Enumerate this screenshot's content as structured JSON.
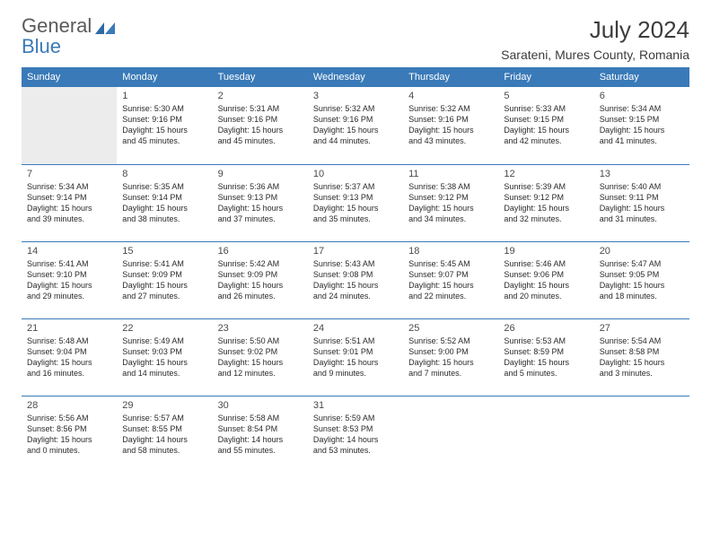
{
  "brand": {
    "word1": "General",
    "word2": "Blue"
  },
  "title": "July 2024",
  "location": "Sarateni, Mures County, Romania",
  "colors": {
    "header_bg": "#3a7ab8",
    "header_text": "#ffffff",
    "border": "#3a7ab8",
    "text": "#2a2a2a",
    "daynum": "#4a4a4a",
    "location_text": "#3c3c3c",
    "logo_gray": "#5a5a5a",
    "logo_blue": "#3a7ab8",
    "empty_bg": "#ececec"
  },
  "typography": {
    "title_fontsize": 26,
    "location_fontsize": 14,
    "dayhead_fontsize": 11,
    "daynum_fontsize": 11,
    "info_fontsize": 9,
    "font_family": "Arial"
  },
  "dayheads": [
    "Sunday",
    "Monday",
    "Tuesday",
    "Wednesday",
    "Thursday",
    "Friday",
    "Saturday"
  ],
  "weeks": [
    [
      {
        "day": "",
        "sunrise": "",
        "sunset": "",
        "daylight1": "",
        "daylight2": ""
      },
      {
        "day": "1",
        "sunrise": "Sunrise: 5:30 AM",
        "sunset": "Sunset: 9:16 PM",
        "daylight1": "Daylight: 15 hours",
        "daylight2": "and 45 minutes."
      },
      {
        "day": "2",
        "sunrise": "Sunrise: 5:31 AM",
        "sunset": "Sunset: 9:16 PM",
        "daylight1": "Daylight: 15 hours",
        "daylight2": "and 45 minutes."
      },
      {
        "day": "3",
        "sunrise": "Sunrise: 5:32 AM",
        "sunset": "Sunset: 9:16 PM",
        "daylight1": "Daylight: 15 hours",
        "daylight2": "and 44 minutes."
      },
      {
        "day": "4",
        "sunrise": "Sunrise: 5:32 AM",
        "sunset": "Sunset: 9:16 PM",
        "daylight1": "Daylight: 15 hours",
        "daylight2": "and 43 minutes."
      },
      {
        "day": "5",
        "sunrise": "Sunrise: 5:33 AM",
        "sunset": "Sunset: 9:15 PM",
        "daylight1": "Daylight: 15 hours",
        "daylight2": "and 42 minutes."
      },
      {
        "day": "6",
        "sunrise": "Sunrise: 5:34 AM",
        "sunset": "Sunset: 9:15 PM",
        "daylight1": "Daylight: 15 hours",
        "daylight2": "and 41 minutes."
      }
    ],
    [
      {
        "day": "7",
        "sunrise": "Sunrise: 5:34 AM",
        "sunset": "Sunset: 9:14 PM",
        "daylight1": "Daylight: 15 hours",
        "daylight2": "and 39 minutes."
      },
      {
        "day": "8",
        "sunrise": "Sunrise: 5:35 AM",
        "sunset": "Sunset: 9:14 PM",
        "daylight1": "Daylight: 15 hours",
        "daylight2": "and 38 minutes."
      },
      {
        "day": "9",
        "sunrise": "Sunrise: 5:36 AM",
        "sunset": "Sunset: 9:13 PM",
        "daylight1": "Daylight: 15 hours",
        "daylight2": "and 37 minutes."
      },
      {
        "day": "10",
        "sunrise": "Sunrise: 5:37 AM",
        "sunset": "Sunset: 9:13 PM",
        "daylight1": "Daylight: 15 hours",
        "daylight2": "and 35 minutes."
      },
      {
        "day": "11",
        "sunrise": "Sunrise: 5:38 AM",
        "sunset": "Sunset: 9:12 PM",
        "daylight1": "Daylight: 15 hours",
        "daylight2": "and 34 minutes."
      },
      {
        "day": "12",
        "sunrise": "Sunrise: 5:39 AM",
        "sunset": "Sunset: 9:12 PM",
        "daylight1": "Daylight: 15 hours",
        "daylight2": "and 32 minutes."
      },
      {
        "day": "13",
        "sunrise": "Sunrise: 5:40 AM",
        "sunset": "Sunset: 9:11 PM",
        "daylight1": "Daylight: 15 hours",
        "daylight2": "and 31 minutes."
      }
    ],
    [
      {
        "day": "14",
        "sunrise": "Sunrise: 5:41 AM",
        "sunset": "Sunset: 9:10 PM",
        "daylight1": "Daylight: 15 hours",
        "daylight2": "and 29 minutes."
      },
      {
        "day": "15",
        "sunrise": "Sunrise: 5:41 AM",
        "sunset": "Sunset: 9:09 PM",
        "daylight1": "Daylight: 15 hours",
        "daylight2": "and 27 minutes."
      },
      {
        "day": "16",
        "sunrise": "Sunrise: 5:42 AM",
        "sunset": "Sunset: 9:09 PM",
        "daylight1": "Daylight: 15 hours",
        "daylight2": "and 26 minutes."
      },
      {
        "day": "17",
        "sunrise": "Sunrise: 5:43 AM",
        "sunset": "Sunset: 9:08 PM",
        "daylight1": "Daylight: 15 hours",
        "daylight2": "and 24 minutes."
      },
      {
        "day": "18",
        "sunrise": "Sunrise: 5:45 AM",
        "sunset": "Sunset: 9:07 PM",
        "daylight1": "Daylight: 15 hours",
        "daylight2": "and 22 minutes."
      },
      {
        "day": "19",
        "sunrise": "Sunrise: 5:46 AM",
        "sunset": "Sunset: 9:06 PM",
        "daylight1": "Daylight: 15 hours",
        "daylight2": "and 20 minutes."
      },
      {
        "day": "20",
        "sunrise": "Sunrise: 5:47 AM",
        "sunset": "Sunset: 9:05 PM",
        "daylight1": "Daylight: 15 hours",
        "daylight2": "and 18 minutes."
      }
    ],
    [
      {
        "day": "21",
        "sunrise": "Sunrise: 5:48 AM",
        "sunset": "Sunset: 9:04 PM",
        "daylight1": "Daylight: 15 hours",
        "daylight2": "and 16 minutes."
      },
      {
        "day": "22",
        "sunrise": "Sunrise: 5:49 AM",
        "sunset": "Sunset: 9:03 PM",
        "daylight1": "Daylight: 15 hours",
        "daylight2": "and 14 minutes."
      },
      {
        "day": "23",
        "sunrise": "Sunrise: 5:50 AM",
        "sunset": "Sunset: 9:02 PM",
        "daylight1": "Daylight: 15 hours",
        "daylight2": "and 12 minutes."
      },
      {
        "day": "24",
        "sunrise": "Sunrise: 5:51 AM",
        "sunset": "Sunset: 9:01 PM",
        "daylight1": "Daylight: 15 hours",
        "daylight2": "and 9 minutes."
      },
      {
        "day": "25",
        "sunrise": "Sunrise: 5:52 AM",
        "sunset": "Sunset: 9:00 PM",
        "daylight1": "Daylight: 15 hours",
        "daylight2": "and 7 minutes."
      },
      {
        "day": "26",
        "sunrise": "Sunrise: 5:53 AM",
        "sunset": "Sunset: 8:59 PM",
        "daylight1": "Daylight: 15 hours",
        "daylight2": "and 5 minutes."
      },
      {
        "day": "27",
        "sunrise": "Sunrise: 5:54 AM",
        "sunset": "Sunset: 8:58 PM",
        "daylight1": "Daylight: 15 hours",
        "daylight2": "and 3 minutes."
      }
    ],
    [
      {
        "day": "28",
        "sunrise": "Sunrise: 5:56 AM",
        "sunset": "Sunset: 8:56 PM",
        "daylight1": "Daylight: 15 hours",
        "daylight2": "and 0 minutes."
      },
      {
        "day": "29",
        "sunrise": "Sunrise: 5:57 AM",
        "sunset": "Sunset: 8:55 PM",
        "daylight1": "Daylight: 14 hours",
        "daylight2": "and 58 minutes."
      },
      {
        "day": "30",
        "sunrise": "Sunrise: 5:58 AM",
        "sunset": "Sunset: 8:54 PM",
        "daylight1": "Daylight: 14 hours",
        "daylight2": "and 55 minutes."
      },
      {
        "day": "31",
        "sunrise": "Sunrise: 5:59 AM",
        "sunset": "Sunset: 8:53 PM",
        "daylight1": "Daylight: 14 hours",
        "daylight2": "and 53 minutes."
      },
      {
        "day": "",
        "sunrise": "",
        "sunset": "",
        "daylight1": "",
        "daylight2": ""
      },
      {
        "day": "",
        "sunrise": "",
        "sunset": "",
        "daylight1": "",
        "daylight2": ""
      },
      {
        "day": "",
        "sunrise": "",
        "sunset": "",
        "daylight1": "",
        "daylight2": ""
      }
    ]
  ]
}
